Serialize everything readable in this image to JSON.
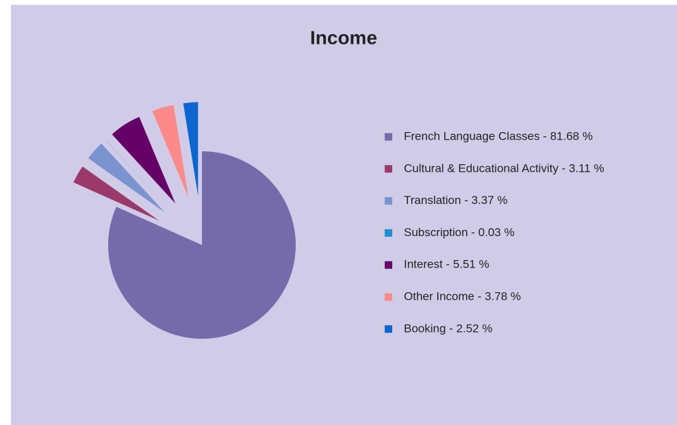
{
  "chart_data": {
    "type": "pie",
    "title": "Income",
    "categories": [
      "French Language Classes - 81.68 %",
      "Cultural & Educational Activity - 3.11 %",
      "Translation - 3.37 %",
      "Subscription - 0.03 %",
      "Interest - 5.51 %",
      "Other Income - 3.78 %",
      "Booking - 2.52 %"
    ],
    "values": [
      81.68,
      3.11,
      3.37,
      0.03,
      5.51,
      3.78,
      2.52
    ],
    "colors": [
      "#756bab",
      "#9b3a6a",
      "#7b93cf",
      "#1e90d0",
      "#650066",
      "#fd8a8a",
      "#0c66d0"
    ],
    "legend": "right"
  }
}
